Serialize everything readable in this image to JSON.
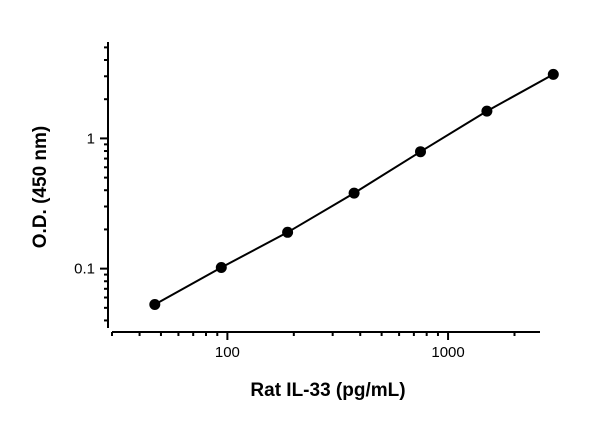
{
  "chart_data": {
    "type": "scatter",
    "title": "",
    "xlabel": "Rat IL-33 (pg/mL)",
    "ylabel": "O.D. (450 nm)",
    "xscale": "log",
    "yscale": "log",
    "xlim": [
      30,
      3800
    ],
    "ylim": [
      0.035,
      5.5
    ],
    "x_tick_labels": [
      {
        "value": 100,
        "label": "100"
      },
      {
        "value": 1000,
        "label": "1000"
      }
    ],
    "y_tick_labels": [
      {
        "value": 0.1,
        "label": "0.1"
      },
      {
        "value": 1,
        "label": "1"
      }
    ],
    "grid": false,
    "series": [
      {
        "x": [
          46.9,
          93.8,
          187.5,
          375,
          750,
          1500,
          3000
        ],
        "y": [
          0.053,
          0.102,
          0.19,
          0.38,
          0.79,
          1.62,
          3.1
        ],
        "marker": "circle",
        "color": "#000000",
        "fit_line": true
      }
    ]
  }
}
